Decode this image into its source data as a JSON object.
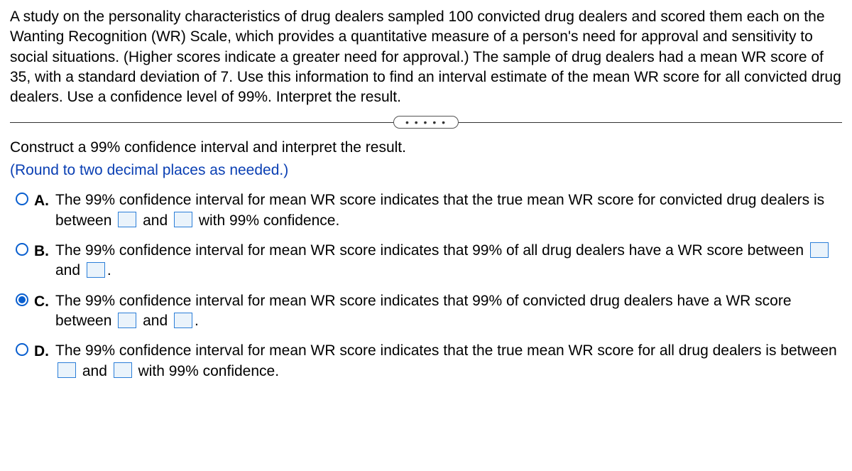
{
  "problem_text": "A study on the personality characteristics of drug dealers sampled 100 convicted drug dealers and scored them each on the Wanting Recognition (WR) Scale, which provides a quantitative measure of a person's need for approval and sensitivity to social situations. (Higher scores indicate a greater need for approval.) The sample of drug dealers had a mean WR score of 35, with a standard deviation of 7. Use this information to find an interval estimate of the mean WR score for all convicted drug dealers. Use a confidence level of 99%. Interpret the result.",
  "divider_dots": "• • • • •",
  "instruction": "Construct a 99% confidence interval and interpret the result.",
  "sub_instruction": "(Round to two decimal places as needed.)",
  "and_word": "and",
  "options": {
    "A": {
      "letter": "A.",
      "selected": false,
      "pre": "The 99% confidence interval for mean WR score indicates that the true mean WR score for convicted drug dealers is between",
      "post": "with 99% confidence."
    },
    "B": {
      "letter": "B.",
      "selected": false,
      "pre": "The 99% confidence interval for mean WR score indicates that 99% of all drug dealers have a WR score between",
      "post": "."
    },
    "C": {
      "letter": "C.",
      "selected": true,
      "pre": "The 99% confidence interval for mean WR score indicates that 99% of convicted drug dealers have a WR score between",
      "post": "."
    },
    "D": {
      "letter": "D.",
      "selected": false,
      "pre": "The 99% confidence interval for mean WR score indicates that the true mean WR score for all drug dealers is between",
      "post": "with 99% confidence."
    }
  },
  "colors": {
    "link_blue": "#0a3fb3",
    "radio_blue": "#0a5fcf",
    "blank_border": "#2b7ed8",
    "blank_bg": "#eaf3fb"
  }
}
